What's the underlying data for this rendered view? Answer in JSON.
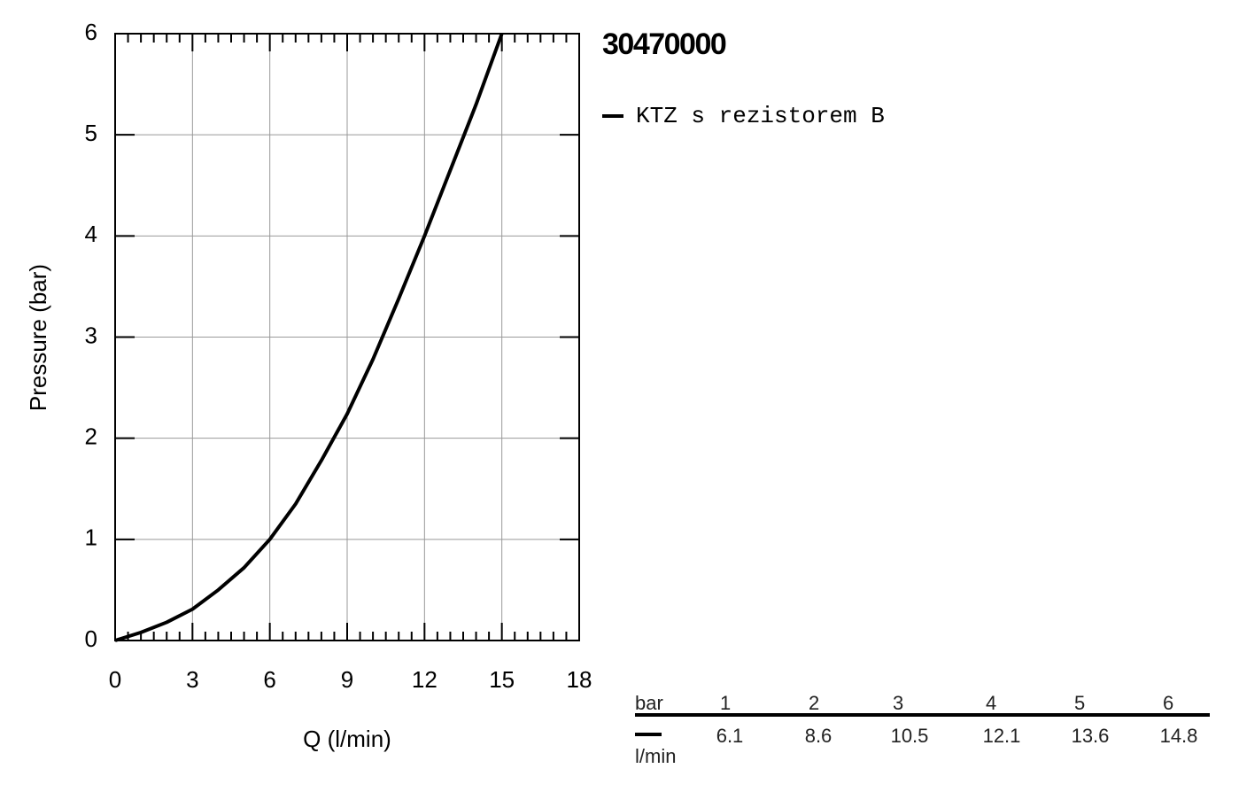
{
  "chart_data": {
    "type": "line",
    "title": "30470000",
    "xlabel": "Q (l/min)",
    "ylabel": "Pressure (bar)",
    "x": [
      0,
      1,
      2,
      3,
      4,
      5,
      6,
      7,
      8,
      9,
      10,
      11,
      12,
      13,
      14,
      15
    ],
    "series": [
      {
        "name": "KTZ s rezistorem B",
        "color": "#000000",
        "values": [
          0,
          0.08,
          0.18,
          0.31,
          0.5,
          0.72,
          1.0,
          1.35,
          1.78,
          2.24,
          2.78,
          3.38,
          4.0,
          4.65,
          5.3,
          6.0
        ]
      }
    ],
    "xlim": [
      0,
      18
    ],
    "xticks": [
      0,
      3,
      6,
      9,
      12,
      15,
      18
    ],
    "xminorticks": [
      0.5,
      1,
      1.5,
      2,
      2.5,
      3.5,
      4,
      4.5,
      5,
      5.5,
      6.5,
      7,
      7.5,
      8,
      8.5,
      9.5,
      10,
      10.5,
      11,
      11.5,
      12.5,
      13,
      13.5,
      14,
      14.5,
      15.5,
      16,
      16.5,
      17,
      17.5
    ],
    "ylim": [
      0,
      6
    ],
    "yticks": [
      0,
      1,
      2,
      3,
      4,
      5,
      6
    ],
    "grid": true
  },
  "table": {
    "header": "bar",
    "columns": [
      1,
      2,
      3,
      4,
      5,
      6
    ],
    "unit": "l/min",
    "values": [
      6.1,
      8.6,
      10.5,
      12.1,
      13.6,
      14.8
    ]
  }
}
